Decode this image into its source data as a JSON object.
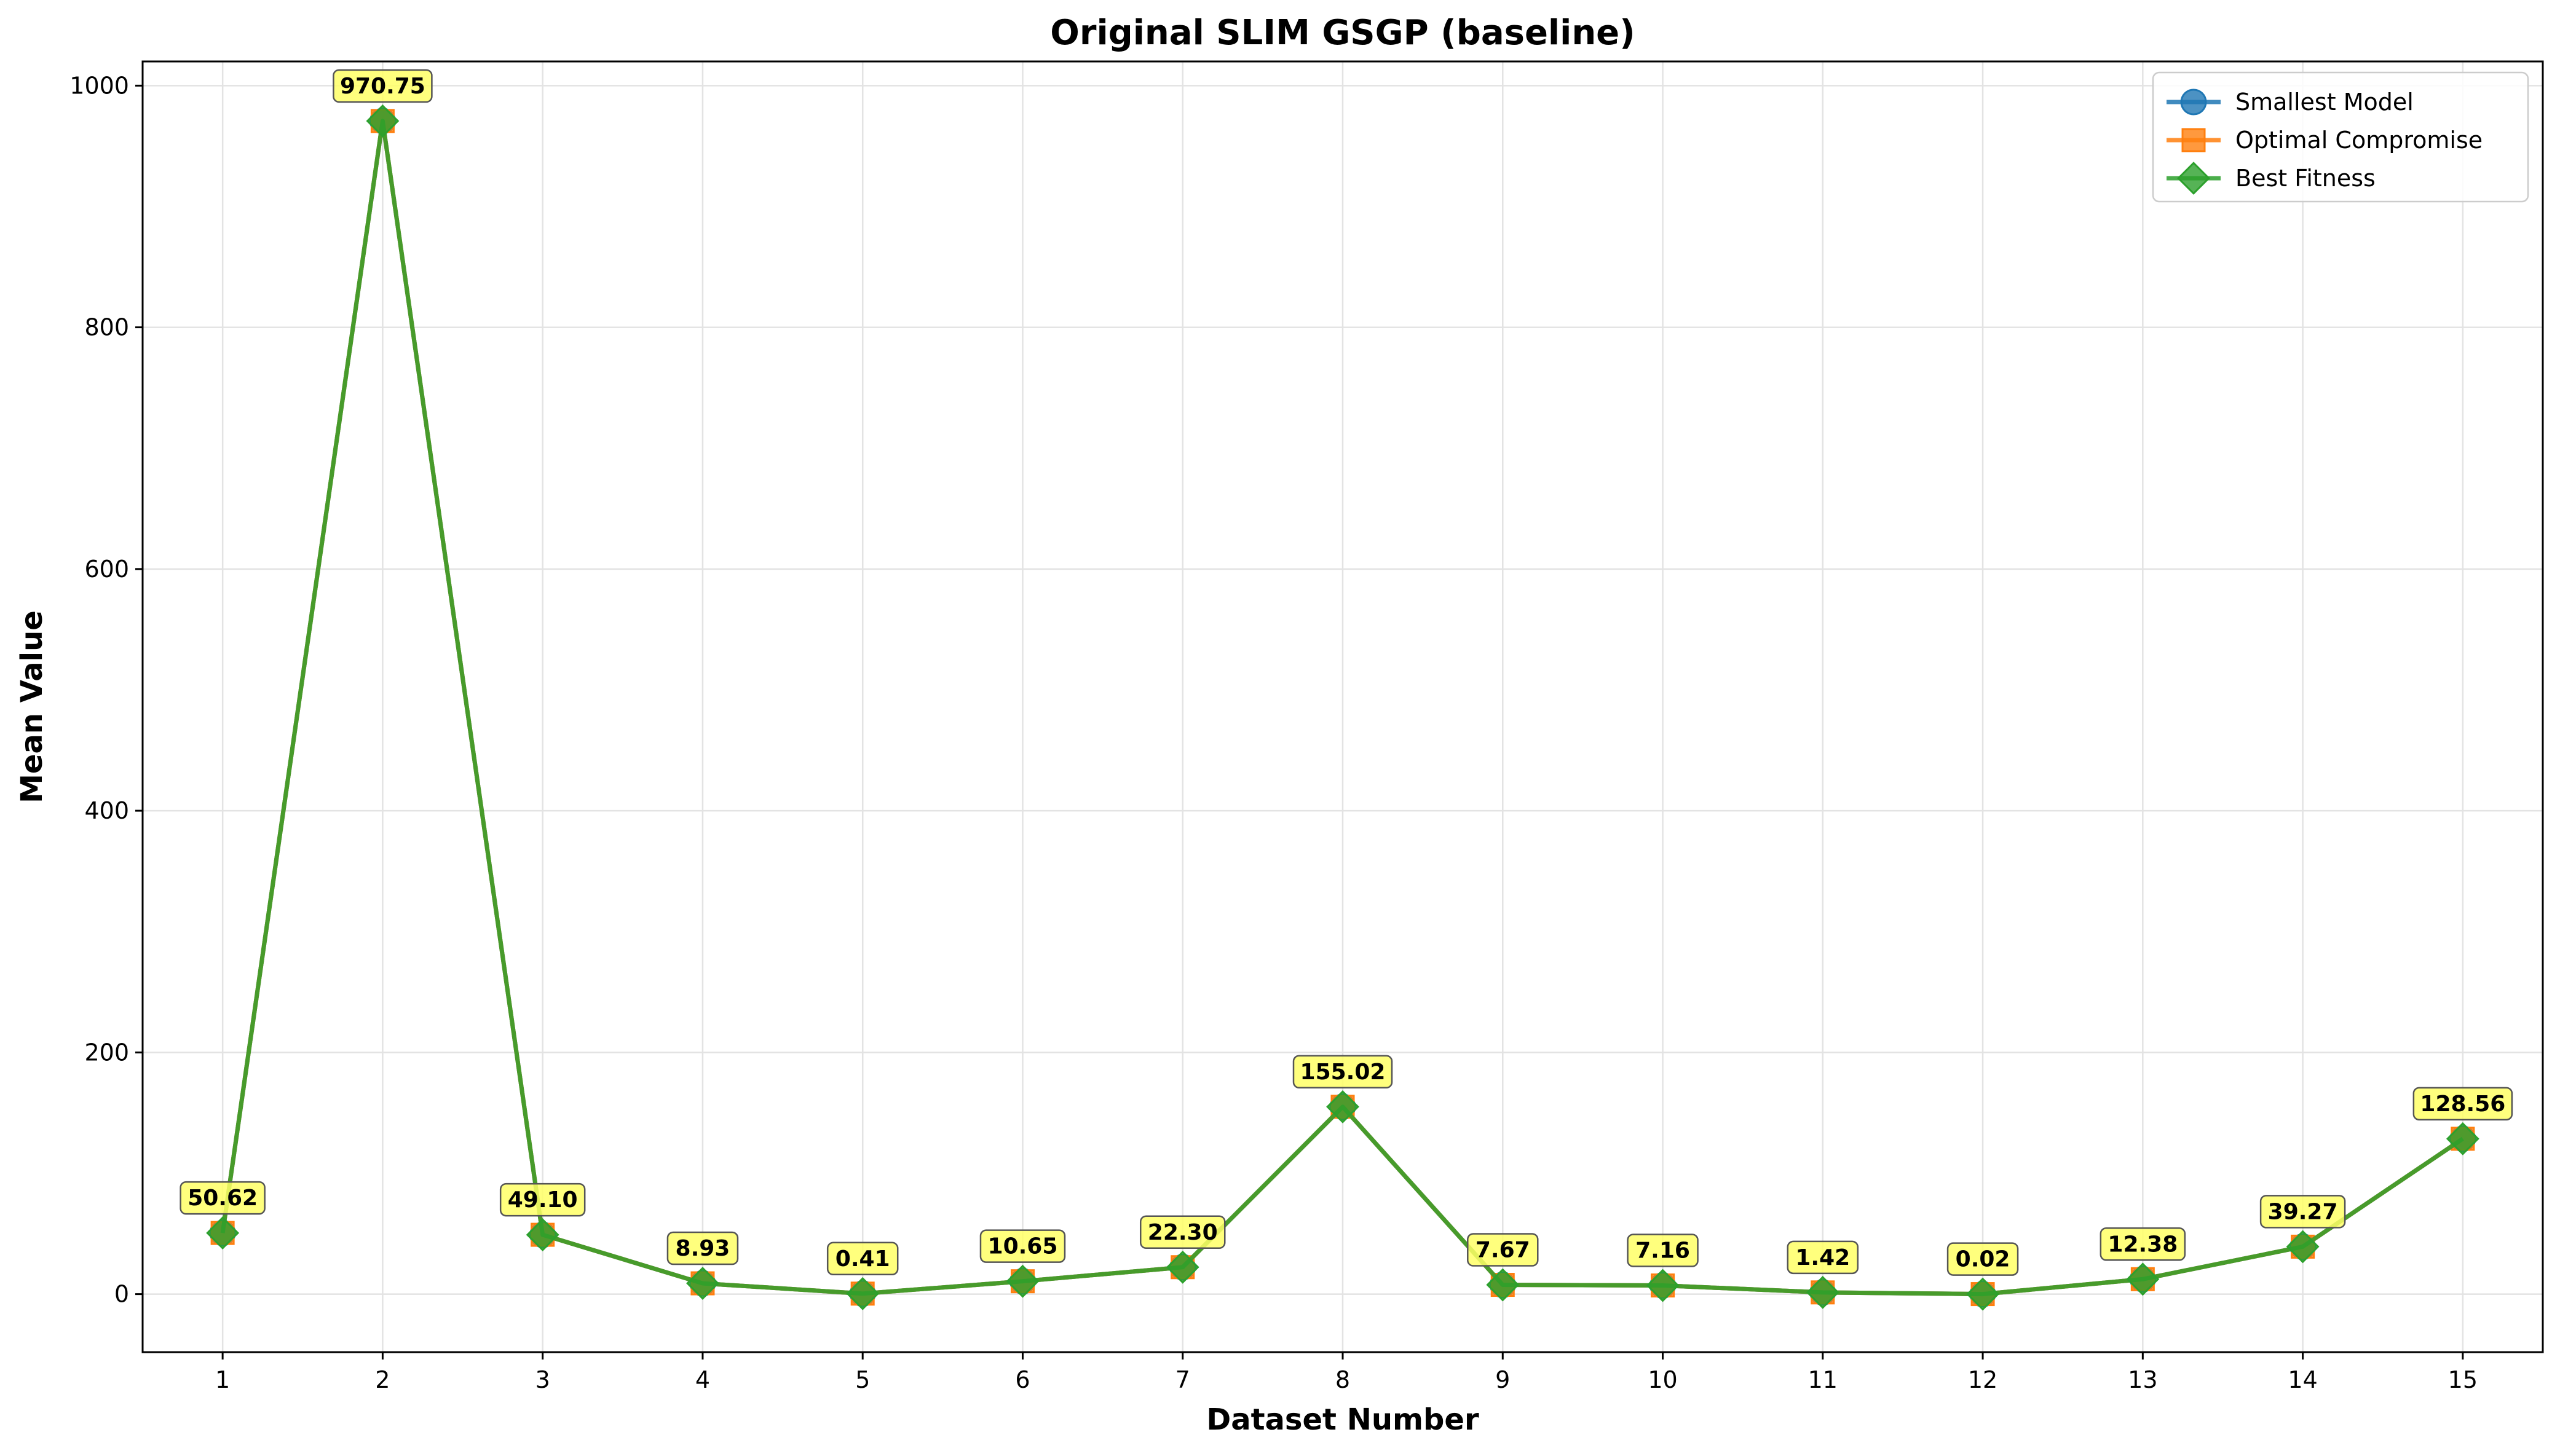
{
  "chart_data": {
    "type": "line",
    "title": "Original SLIM GSGP (baseline)",
    "xlabel": "Dataset Number",
    "ylabel": "Mean Value",
    "x": [
      1,
      2,
      3,
      4,
      5,
      6,
      7,
      8,
      9,
      10,
      11,
      12,
      13,
      14,
      15
    ],
    "xlim": [
      0.5,
      15.5
    ],
    "ylim": [
      -48,
      1020
    ],
    "yticks": [
      0,
      200,
      400,
      600,
      800,
      1000
    ],
    "grid": true,
    "legend_position": "top-right",
    "series": [
      {
        "name": "Smallest Model",
        "color": "#1f77b4",
        "marker": "circle",
        "values": [
          50.62,
          970.75,
          49.1,
          8.93,
          0.41,
          10.65,
          22.3,
          155.02,
          7.67,
          7.16,
          1.42,
          0.02,
          12.38,
          39.27,
          128.56
        ]
      },
      {
        "name": "Optimal Compromise",
        "color": "#ff7f0e",
        "marker": "square",
        "values": [
          50.62,
          970.75,
          49.1,
          8.93,
          0.41,
          10.65,
          22.3,
          155.02,
          7.67,
          7.16,
          1.42,
          0.02,
          12.38,
          39.27,
          128.56
        ]
      },
      {
        "name": "Best Fitness",
        "color": "#2ca02c",
        "marker": "diamond",
        "values": [
          50.62,
          970.75,
          49.1,
          8.93,
          0.41,
          10.65,
          22.3,
          155.02,
          7.67,
          7.16,
          1.42,
          0.02,
          12.38,
          39.27,
          128.56
        ]
      }
    ],
    "data_labels": [
      "50.62",
      "970.75",
      "49.10",
      "8.93",
      "0.41",
      "10.65",
      "22.30",
      "155.02",
      "7.67",
      "7.16",
      "1.42",
      "0.02",
      "12.38",
      "39.27",
      "128.56"
    ],
    "annotation_box_color": "#ffff66"
  }
}
